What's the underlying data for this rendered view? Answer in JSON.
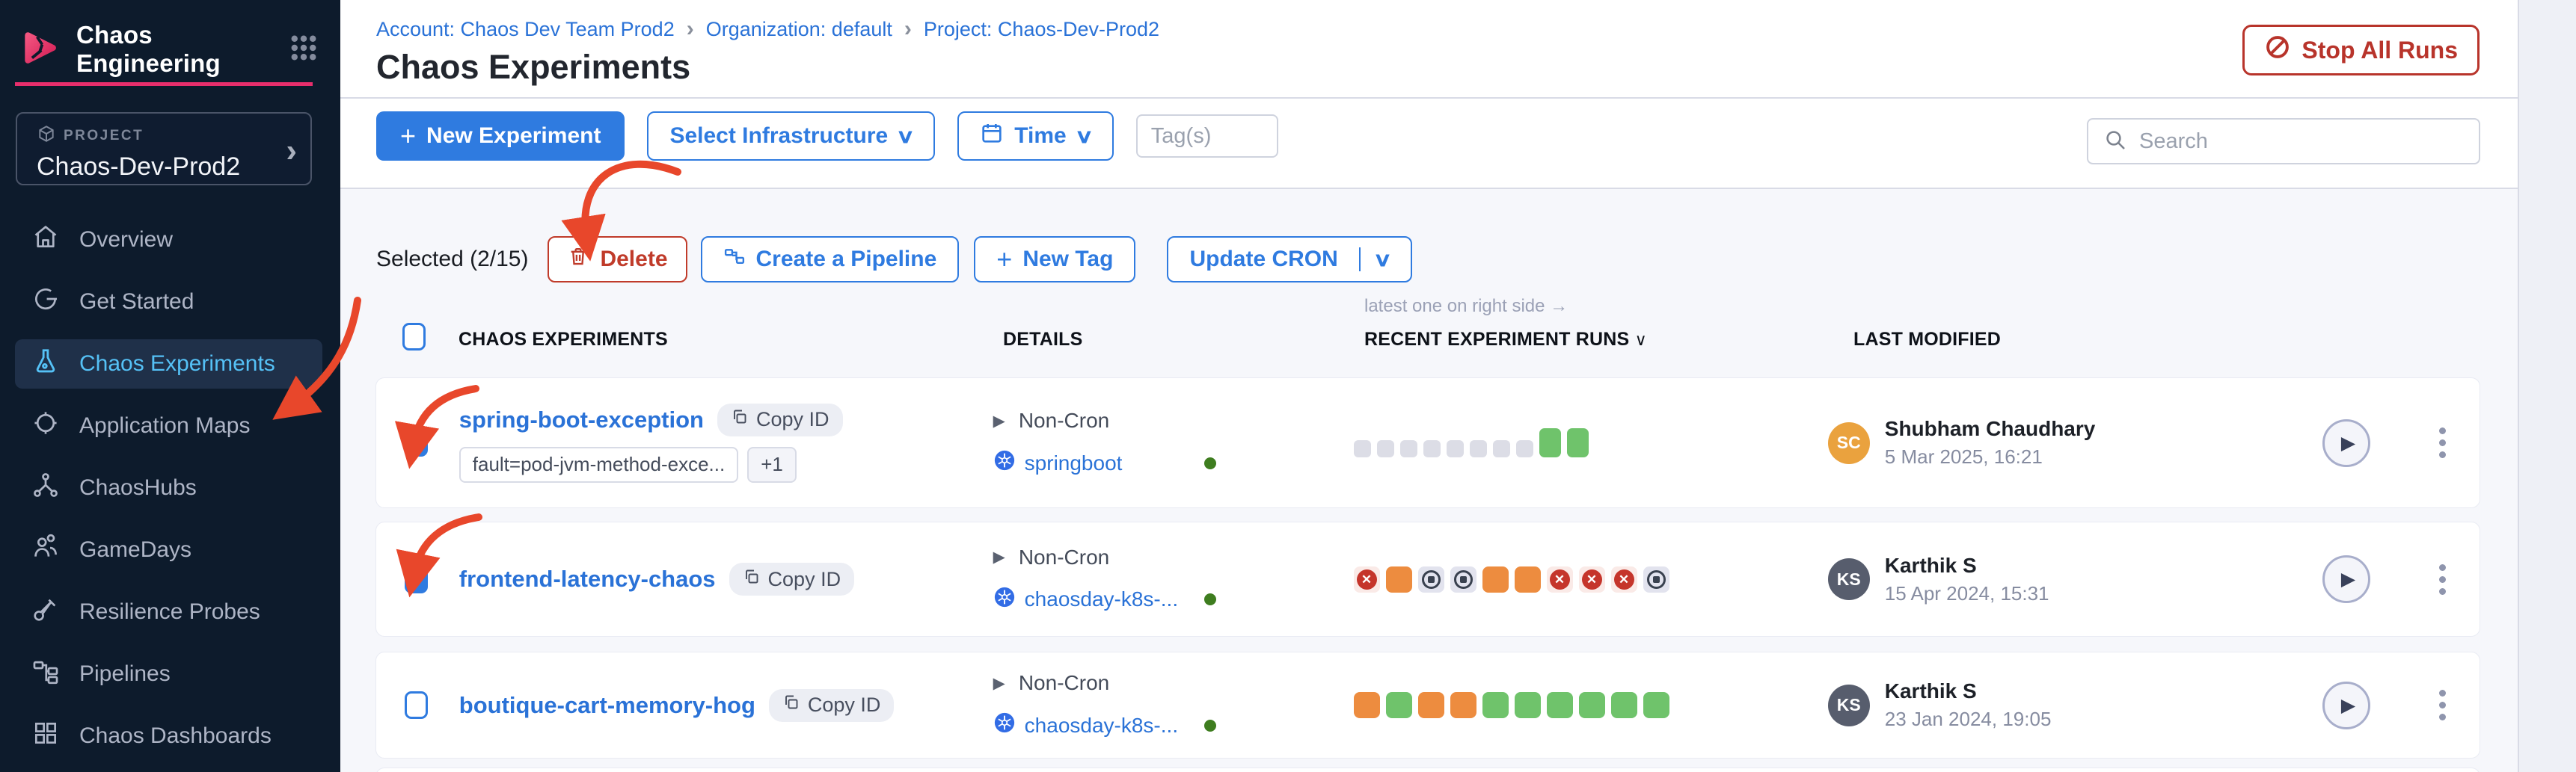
{
  "brand": {
    "title": "Chaos Engineering"
  },
  "project": {
    "label": "PROJECT",
    "name": "Chaos-Dev-Prod2"
  },
  "sidebar": {
    "items": [
      {
        "label": "Overview",
        "icon": "home-icon",
        "active": false
      },
      {
        "label": "Get Started",
        "icon": "get-started-icon",
        "active": false
      },
      {
        "label": "Chaos Experiments",
        "icon": "flask-icon",
        "active": true
      },
      {
        "label": "Application Maps",
        "icon": "application-maps-icon",
        "active": false
      },
      {
        "label": "ChaosHubs",
        "icon": "network-icon",
        "active": false
      },
      {
        "label": "GameDays",
        "icon": "people-icon",
        "active": false
      },
      {
        "label": "Resilience Probes",
        "icon": "probe-icon",
        "active": false
      },
      {
        "label": "Pipelines",
        "icon": "pipeline-icon",
        "active": false
      },
      {
        "label": "Chaos Dashboards",
        "icon": "dashboard-icon",
        "active": false
      }
    ]
  },
  "breadcrumb": {
    "account": "Account: Chaos Dev Team Prod2",
    "org": "Organization: default",
    "project": "Project: Chaos-Dev-Prod2"
  },
  "page": {
    "title": "Chaos Experiments"
  },
  "header": {
    "stop_all_runs": "Stop All Runs"
  },
  "toolbar": {
    "new_experiment": "New Experiment",
    "select_infrastructure": "Select Infrastructure",
    "time": "Time",
    "tags_placeholder": "Tag(s)",
    "search_placeholder": "Search"
  },
  "selection": {
    "label": "Selected (2/15)",
    "delete": "Delete",
    "create_pipeline": "Create a Pipeline",
    "new_tag": "New Tag",
    "update_cron": "Update CRON"
  },
  "table": {
    "hint": "latest one on right side →",
    "headers": {
      "experiments": "CHAOS EXPERIMENTS",
      "details": "DETAILS",
      "recent_runs": "RECENT EXPERIMENT RUNS",
      "last_modified": "LAST MODIFIED"
    },
    "rows": [
      {
        "name": "spring-boot-exception",
        "copy_id": "Copy ID",
        "tag": "fault=pod-jvm-method-exce...",
        "tag_more": "+1",
        "checked": true,
        "schedule": "Non-Cron",
        "infra": "springboot",
        "runs": [
          "pending",
          "pending",
          "pending",
          "pending",
          "pending",
          "pending",
          "pending",
          "pending",
          "passed_latest",
          "passed_latest"
        ],
        "modified": {
          "initials": "SC",
          "name": "Shubham Chaudhary",
          "date": "5 Mar 2025, 16:21"
        }
      },
      {
        "name": "frontend-latency-chaos",
        "copy_id": "Copy ID",
        "checked": true,
        "schedule": "Non-Cron",
        "infra": "chaosday-k8s-...",
        "runs": [
          "failed",
          "error",
          "stopped",
          "stopped",
          "error",
          "error",
          "failed",
          "failed",
          "failed",
          "stopped"
        ],
        "modified": {
          "initials": "KS",
          "name": "Karthik S",
          "date": "15 Apr 2024, 15:31"
        }
      },
      {
        "name": "boutique-cart-memory-hog",
        "copy_id": "Copy ID",
        "checked": false,
        "schedule": "Non-Cron",
        "infra": "chaosday-k8s-...",
        "runs": [
          "error",
          "passed",
          "error",
          "error",
          "passed",
          "passed",
          "passed",
          "passed",
          "passed",
          "passed"
        ],
        "modified": {
          "initials": "KS",
          "name": "Karthik S",
          "date": "23 Jan 2024, 19:05"
        }
      }
    ]
  },
  "icons": {
    "plus": "+",
    "chevron_down": "∨",
    "play": "▶",
    "check": "✓",
    "breadcrumb_sep": "›",
    "project_chevron": "›"
  },
  "colors": {
    "accent_blue": "#2f7be0",
    "link_blue": "#2a72d7",
    "sidebar_bg": "#0d1b2c",
    "sidebar_active_text": "#55c1f6",
    "brand_pink": "#e72e6c",
    "danger_red": "#b8342b",
    "run_passed_green": "#6fc36b",
    "run_error_orange": "#ed8c3f",
    "run_failed_red": "#c5352b",
    "run_pending_gray": "#dcdde6",
    "avatar_orange": "#eaa23e",
    "avatar_slate": "#575d6d",
    "status_green_dot": "#3e7d1f",
    "annotation_red": "#e8472b"
  }
}
